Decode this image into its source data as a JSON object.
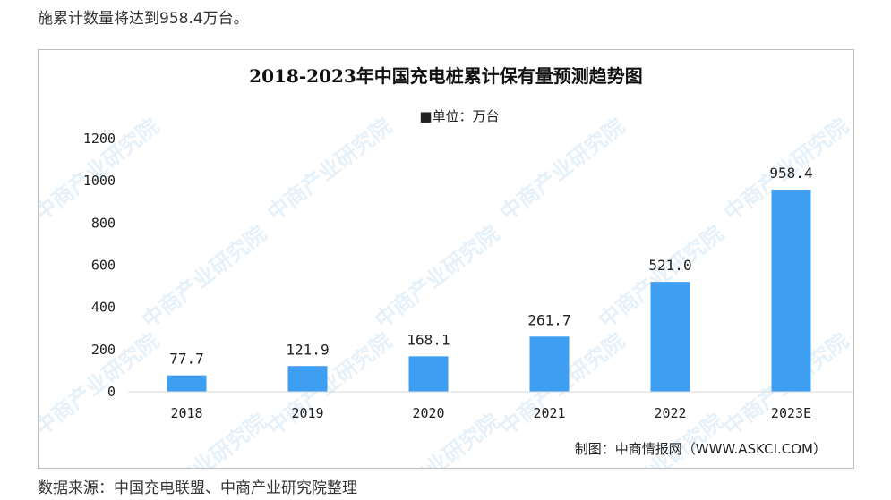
{
  "page": {
    "intro_text": "施累计数量将达到958.4万台。",
    "source_text": "数据来源：中国充电联盟、中商产业研究院整理"
  },
  "chart_data": {
    "type": "bar",
    "title": "2018-2023年中国充电桩累计保有量预测趋势图",
    "legend": "■单位：万台",
    "categories": [
      "2018",
      "2019",
      "2020",
      "2021",
      "2022",
      "2023E"
    ],
    "values": [
      77.7,
      121.9,
      168.1,
      261.7,
      521.0,
      958.4
    ],
    "value_labels": [
      "77.7",
      "121.9",
      "168.1",
      "261.7",
      "521.0",
      "958.4"
    ],
    "yticks": [
      "0",
      "200",
      "400",
      "600",
      "800",
      "1000",
      "1200"
    ],
    "ylim": [
      0,
      1200
    ],
    "bar_color": "#3e9ff2",
    "credit": "制图：中商情报网（WWW.ASKCI.COM）",
    "watermark": "中商产业研究院"
  }
}
